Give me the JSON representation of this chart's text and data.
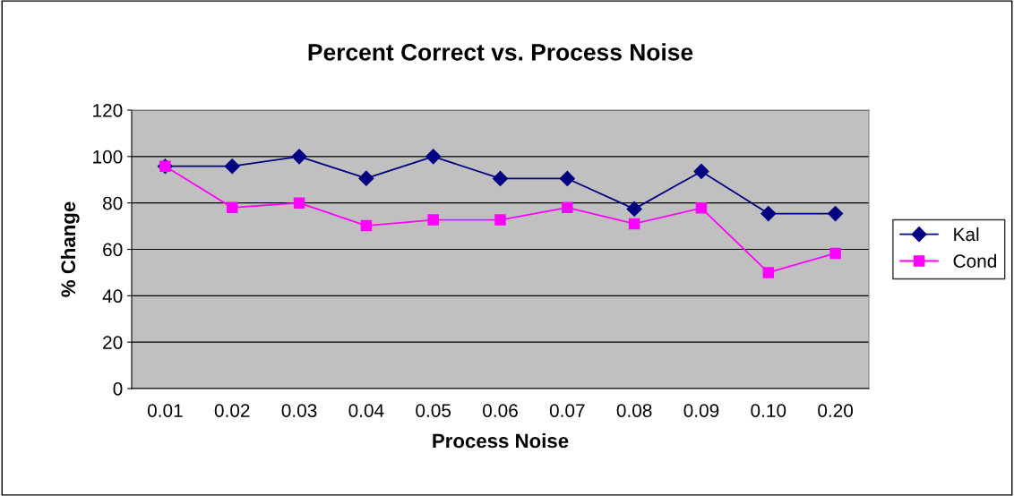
{
  "chart_data": {
    "type": "line",
    "title": "Percent Correct vs. Process Noise",
    "xlabel": "Process Noise",
    "ylabel": "% Change",
    "categories": [
      "0.01",
      "0.02",
      "0.03",
      "0.04",
      "0.05",
      "0.06",
      "0.07",
      "0.08",
      "0.09",
      "0.10",
      "0.20"
    ],
    "series": [
      {
        "name": "Kal",
        "color": "#000080",
        "marker": "diamond",
        "values": [
          95.8,
          95.8,
          100,
          90.6,
          100,
          90.5,
          90.5,
          77.4,
          93.6,
          75.4,
          75.4
        ]
      },
      {
        "name": "Cond",
        "color": "#ff00ff",
        "marker": "square",
        "values": [
          95.8,
          78,
          80,
          70.2,
          72.7,
          72.7,
          78,
          71,
          77.8,
          50,
          58.3
        ]
      }
    ],
    "ylim": [
      0,
      120
    ],
    "yticks": [
      0,
      20,
      40,
      60,
      80,
      100,
      120
    ],
    "grid": "y",
    "legend": "right",
    "line_style": "solid"
  }
}
